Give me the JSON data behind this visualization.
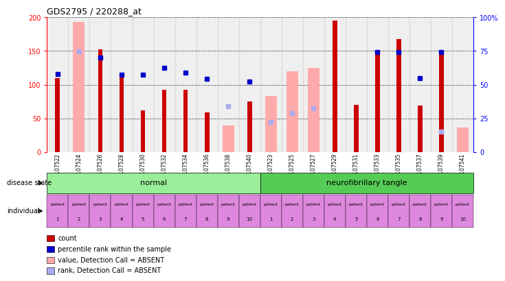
{
  "title": "GDS2795 / 220288_at",
  "samples": [
    "GSM107522",
    "GSM107524",
    "GSM107526",
    "GSM107528",
    "GSM107530",
    "GSM107532",
    "GSM107534",
    "GSM107536",
    "GSM107538",
    "GSM107540",
    "GSM107523",
    "GSM107525",
    "GSM107527",
    "GSM107529",
    "GSM107531",
    "GSM107533",
    "GSM107535",
    "GSM107537",
    "GSM107539",
    "GSM107541"
  ],
  "count_values": [
    110,
    null,
    153,
    112,
    62,
    93,
    93,
    59,
    null,
    75,
    null,
    null,
    null,
    195,
    70,
    148,
    168,
    69,
    150,
    null
  ],
  "rank_values": [
    116,
    null,
    140,
    115,
    115,
    125,
    118,
    109,
    null,
    105,
    null,
    null,
    null,
    null,
    null,
    148,
    148,
    110,
    148,
    null
  ],
  "absent_value": [
    null,
    193,
    null,
    null,
    null,
    null,
    null,
    null,
    40,
    null,
    83,
    120,
    125,
    null,
    null,
    null,
    null,
    null,
    null,
    37
  ],
  "absent_rank": [
    null,
    149,
    null,
    null,
    null,
    null,
    null,
    null,
    68,
    null,
    45,
    58,
    65,
    null,
    null,
    null,
    null,
    null,
    30,
    null
  ],
  "ylim_left": [
    0,
    200
  ],
  "ylim_right": [
    0,
    100
  ],
  "yticks_left": [
    0,
    50,
    100,
    150,
    200
  ],
  "yticks_right": [
    0,
    25,
    50,
    75,
    100
  ],
  "yticks_right_labels": [
    "0",
    "25",
    "50",
    "75",
    "100%"
  ],
  "color_count": "#cc0000",
  "color_rank": "#0000cc",
  "color_absent_value": "#ffaaaa",
  "color_absent_rank": "#aaaaee",
  "normal_bg": "#99ee99",
  "neuro_bg": "#55cc55",
  "individual_bg": "#dd88dd",
  "normal_label": "normal",
  "neuro_label": "neurofibrillary tangle",
  "disease_state_label": "disease state",
  "individual_label": "individual",
  "legend": [
    {
      "color": "#cc0000",
      "label": "count"
    },
    {
      "color": "#0000cc",
      "label": "percentile rank within the sample"
    },
    {
      "color": "#ffaaaa",
      "label": "value, Detection Call = ABSENT"
    },
    {
      "color": "#aaaaee",
      "label": "rank, Detection Call = ABSENT"
    }
  ],
  "patient_nums": [
    "1",
    "2",
    "3",
    "4",
    "5",
    "6",
    "7",
    "8",
    "9",
    "10",
    "1",
    "2",
    "3",
    "4",
    "5",
    "6",
    "7",
    "8",
    "9",
    "10"
  ]
}
